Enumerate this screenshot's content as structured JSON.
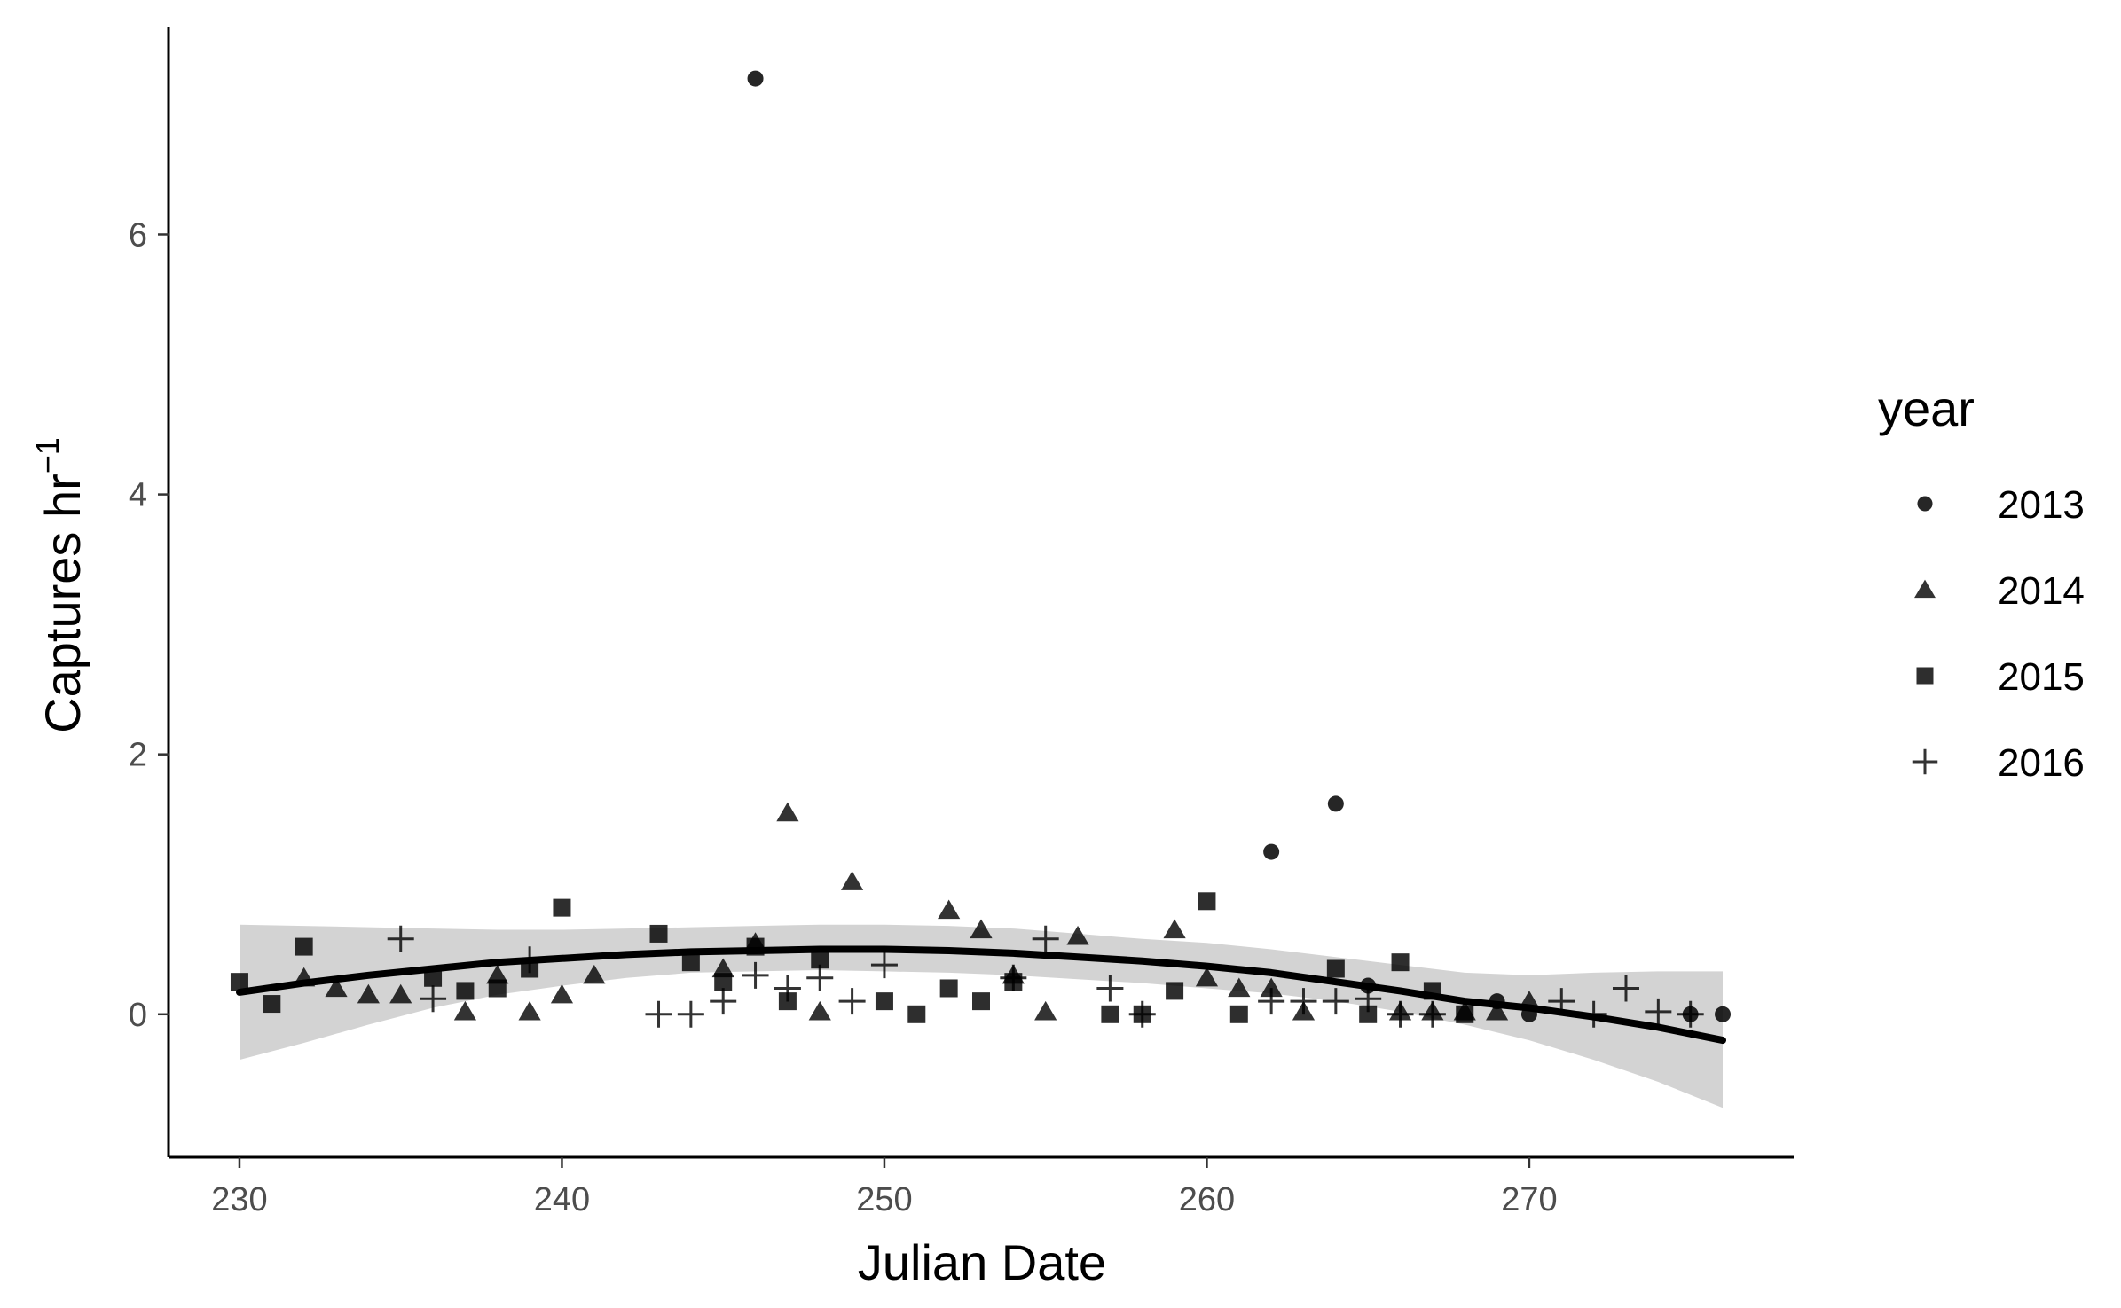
{
  "chart_data": {
    "type": "scatter",
    "title": "",
    "xlabel": "Julian Date",
    "ylabel": "Captures  hr",
    "ylabel_superscript": "−1",
    "xlim": [
      227.8,
      278.2
    ],
    "ylim": [
      -1.1,
      7.6
    ],
    "xticks": [
      230,
      240,
      250,
      260,
      270
    ],
    "yticks": [
      0,
      2,
      4,
      6
    ],
    "grid": false,
    "legend": {
      "title": "year",
      "position": "right",
      "entries": [
        {
          "label": "2013",
          "shape": "circle"
        },
        {
          "label": "2014",
          "shape": "triangle"
        },
        {
          "label": "2015",
          "shape": "square"
        },
        {
          "label": "2016",
          "shape": "plus"
        }
      ]
    },
    "series": [
      {
        "name": "2013",
        "shape": "circle",
        "points": [
          [
            246,
            7.2
          ],
          [
            262,
            1.25
          ],
          [
            264,
            1.62
          ],
          [
            265,
            0.22
          ],
          [
            269,
            0.1
          ],
          [
            270,
            0.0
          ],
          [
            275,
            0.0
          ],
          [
            276,
            0.0
          ]
        ]
      },
      {
        "name": "2014",
        "shape": "triangle",
        "points": [
          [
            232,
            0.28
          ],
          [
            233,
            0.2
          ],
          [
            234,
            0.15
          ],
          [
            235,
            0.15
          ],
          [
            237,
            0.02
          ],
          [
            238,
            0.3
          ],
          [
            239,
            0.02
          ],
          [
            240,
            0.15
          ],
          [
            241,
            0.3
          ],
          [
            245,
            0.35
          ],
          [
            246,
            0.55
          ],
          [
            247,
            1.55
          ],
          [
            248,
            0.02
          ],
          [
            249,
            1.02
          ],
          [
            252,
            0.8
          ],
          [
            253,
            0.65
          ],
          [
            254,
            0.3
          ],
          [
            255,
            0.02
          ],
          [
            256,
            0.6
          ],
          [
            259,
            0.65
          ],
          [
            260,
            0.28
          ],
          [
            261,
            0.2
          ],
          [
            262,
            0.2
          ],
          [
            263,
            0.02
          ],
          [
            266,
            0.02
          ],
          [
            267,
            0.02
          ],
          [
            268,
            0.02
          ],
          [
            269,
            0.02
          ],
          [
            270,
            0.1
          ]
        ]
      },
      {
        "name": "2015",
        "shape": "square",
        "points": [
          [
            230,
            0.25
          ],
          [
            231,
            0.08
          ],
          [
            232,
            0.52
          ],
          [
            236,
            0.28
          ],
          [
            237,
            0.18
          ],
          [
            238,
            0.2
          ],
          [
            239,
            0.35
          ],
          [
            240,
            0.82
          ],
          [
            243,
            0.62
          ],
          [
            244,
            0.4
          ],
          [
            245,
            0.25
          ],
          [
            246,
            0.52
          ],
          [
            247,
            0.1
          ],
          [
            248,
            0.42
          ],
          [
            250,
            0.1
          ],
          [
            251,
            0.0
          ],
          [
            252,
            0.2
          ],
          [
            253,
            0.1
          ],
          [
            254,
            0.25
          ],
          [
            257,
            0.0
          ],
          [
            258,
            0.0
          ],
          [
            259,
            0.18
          ],
          [
            260,
            0.87
          ],
          [
            261,
            0.0
          ],
          [
            264,
            0.35
          ],
          [
            265,
            0.0
          ],
          [
            266,
            0.4
          ],
          [
            267,
            0.18
          ],
          [
            268,
            0.0
          ]
        ]
      },
      {
        "name": "2016",
        "shape": "plus",
        "points": [
          [
            235,
            0.58
          ],
          [
            236,
            0.12
          ],
          [
            239,
            0.42
          ],
          [
            243,
            0.0
          ],
          [
            244,
            0.0
          ],
          [
            245,
            0.1
          ],
          [
            246,
            0.3
          ],
          [
            247,
            0.2
          ],
          [
            248,
            0.28
          ],
          [
            249,
            0.1
          ],
          [
            250,
            0.38
          ],
          [
            254,
            0.28
          ],
          [
            255,
            0.58
          ],
          [
            257,
            0.2
          ],
          [
            258,
            0.0
          ],
          [
            262,
            0.1
          ],
          [
            263,
            0.1
          ],
          [
            264,
            0.1
          ],
          [
            265,
            0.12
          ],
          [
            266,
            0.0
          ],
          [
            267,
            0.0
          ],
          [
            271,
            0.1
          ],
          [
            272,
            0.0
          ],
          [
            273,
            0.2
          ],
          [
            274,
            0.02
          ],
          [
            275,
            0.0
          ]
        ]
      }
    ],
    "smooth": {
      "color": "#000000",
      "band_color": "#d3d3d3",
      "x": [
        230,
        232,
        234,
        236,
        238,
        240,
        242,
        244,
        246,
        248,
        250,
        252,
        254,
        256,
        258,
        260,
        262,
        264,
        266,
        268,
        270,
        272,
        274,
        276
      ],
      "y": [
        0.17,
        0.24,
        0.3,
        0.35,
        0.4,
        0.43,
        0.46,
        0.48,
        0.49,
        0.5,
        0.5,
        0.49,
        0.47,
        0.44,
        0.41,
        0.37,
        0.32,
        0.25,
        0.18,
        0.1,
        0.05,
        -0.02,
        -0.1,
        -0.2
      ],
      "lower": [
        -0.35,
        -0.22,
        -0.08,
        0.05,
        0.15,
        0.22,
        0.28,
        0.32,
        0.33,
        0.34,
        0.33,
        0.32,
        0.3,
        0.27,
        0.24,
        0.2,
        0.16,
        0.1,
        0.02,
        -0.08,
        -0.2,
        -0.35,
        -0.52,
        -0.72
      ],
      "upper": [
        0.69,
        0.68,
        0.67,
        0.66,
        0.65,
        0.65,
        0.66,
        0.67,
        0.68,
        0.69,
        0.69,
        0.68,
        0.66,
        0.62,
        0.58,
        0.55,
        0.5,
        0.44,
        0.38,
        0.32,
        0.3,
        0.32,
        0.33,
        0.33
      ]
    }
  }
}
